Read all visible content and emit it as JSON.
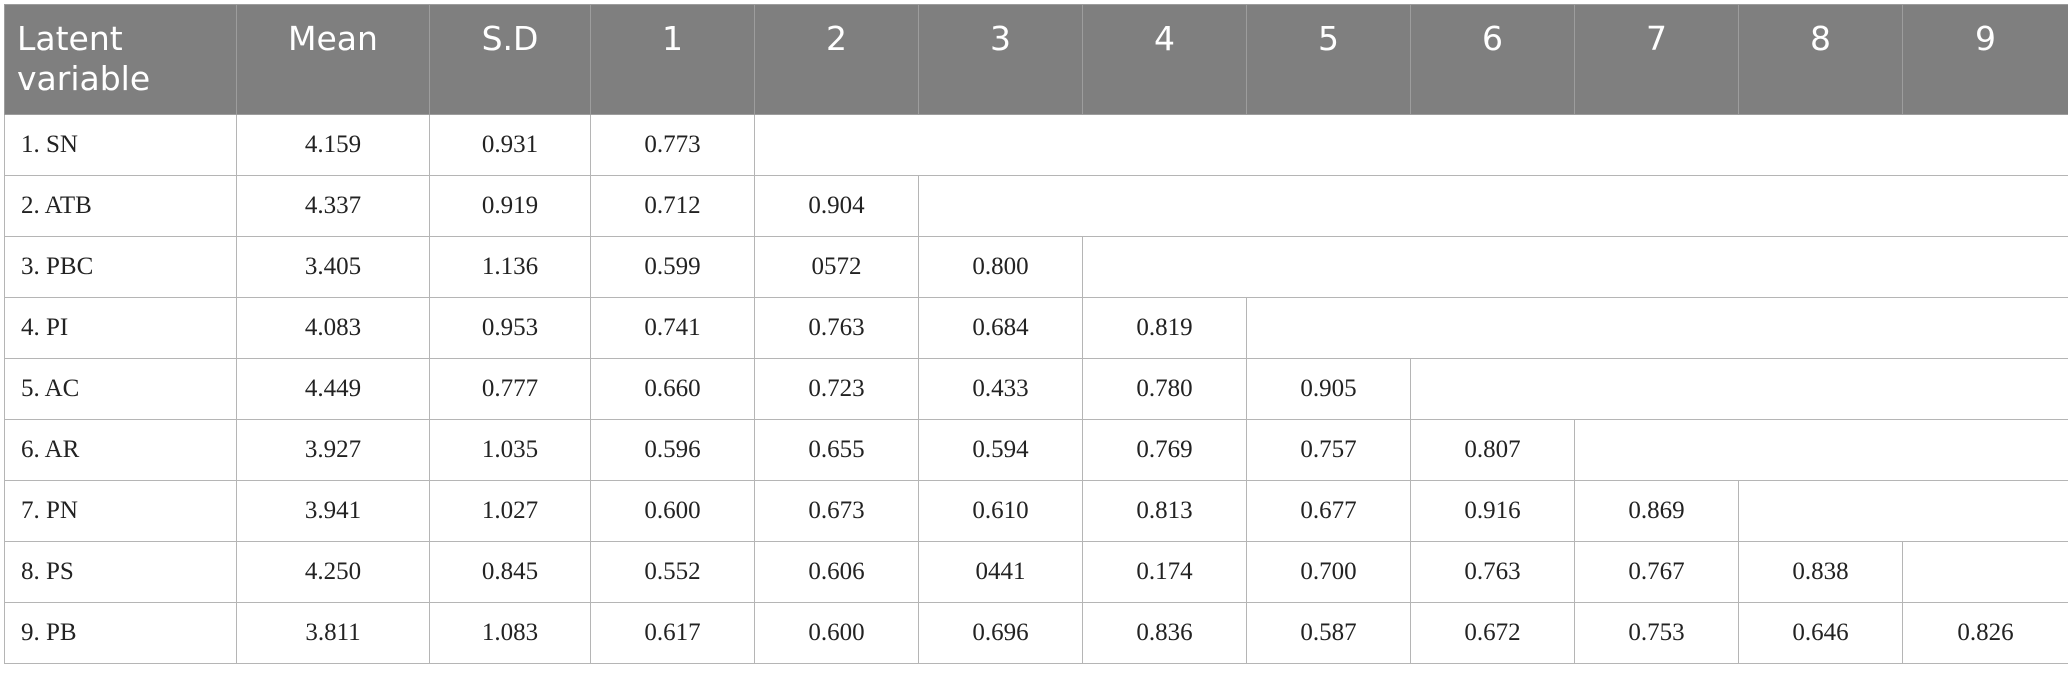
{
  "table": {
    "headers": [
      "Latent\nvariable",
      "Mean",
      "S.D",
      "1",
      "2",
      "3",
      "4",
      "5",
      "6",
      "7",
      "8",
      "9"
    ],
    "rows": [
      {
        "label": "1. SN",
        "mean": "4.159",
        "sd": "0.931",
        "values": [
          "0.773"
        ]
      },
      {
        "label": "2. ATB",
        "mean": "4.337",
        "sd": "0.919",
        "values": [
          "0.712",
          "0.904"
        ]
      },
      {
        "label": "3. PBC",
        "mean": "3.405",
        "sd": "1.136",
        "values": [
          "0.599",
          "0572",
          "0.800"
        ]
      },
      {
        "label": "4. PI",
        "mean": "4.083",
        "sd": "0.953",
        "values": [
          "0.741",
          "0.763",
          "0.684",
          "0.819"
        ]
      },
      {
        "label": "5. AC",
        "mean": "4.449",
        "sd": "0.777",
        "values": [
          "0.660",
          "0.723",
          "0.433",
          "0.780",
          "0.905"
        ]
      },
      {
        "label": "6. AR",
        "mean": "3.927",
        "sd": "1.035",
        "values": [
          "0.596",
          "0.655",
          "0.594",
          "0.769",
          "0.757",
          "0.807"
        ]
      },
      {
        "label": "7. PN",
        "mean": "3.941",
        "sd": "1.027",
        "values": [
          "0.600",
          "0.673",
          "0.610",
          "0.813",
          "0.677",
          "0.916",
          "0.869"
        ]
      },
      {
        "label": "8. PS",
        "mean": "4.250",
        "sd": "0.845",
        "values": [
          "0.552",
          "0.606",
          "0441",
          "0.174",
          "0.700",
          "0.763",
          "0.767",
          "0.838"
        ]
      },
      {
        "label": "9. PB",
        "mean": "3.811",
        "sd": "1.083",
        "values": [
          "0.617",
          "0.600",
          "0.696",
          "0.836",
          "0.587",
          "0.672",
          "0.753",
          "0.646",
          "0.826"
        ]
      }
    ]
  },
  "colors": {
    "header_bg": "#7f7f7f",
    "header_text": "#ffffff",
    "grid": "#b5b5b5"
  }
}
